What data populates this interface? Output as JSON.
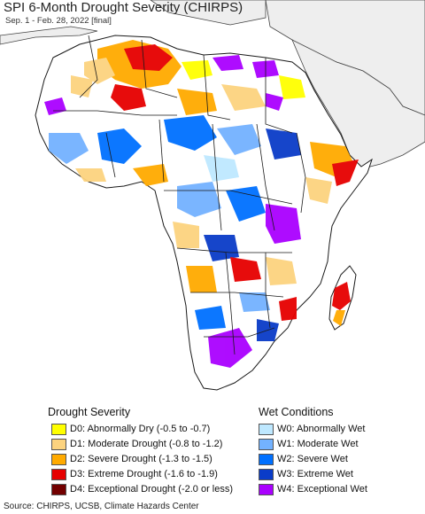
{
  "title": "SPI 6-Month Drought Severity (CHIRPS)",
  "subtitle": "Sep. 1 - Feb. 28, 2022 [final]",
  "colors": {
    "ocean": "#ffffff",
    "land_outside": "#eeeeee",
    "land_normal": "#ffffff",
    "border": "#1a1a1a"
  },
  "legend": {
    "drought_title": "Drought Severity",
    "drought": [
      {
        "label": "D0: Abnormally Dry (-0.5 to -0.7)",
        "color": "#ffff00"
      },
      {
        "label": "D1: Moderate Drought (-0.8 to -1.2)",
        "color": "#fcd37f"
      },
      {
        "label": "D2: Severe Drought (-1.3 to -1.5)",
        "color": "#ffaa00"
      },
      {
        "label": "D3: Extreme Drought (-1.6 to -1.9)",
        "color": "#e60000"
      },
      {
        "label": "D4: Exceptional Drought (-2.0 or less)",
        "color": "#730000"
      }
    ],
    "wet_title": "Wet Conditions",
    "wet": [
      {
        "label": "W0: Abnormally Wet",
        "color": "#bee8ff"
      },
      {
        "label": "W1: Moderate Wet",
        "color": "#73b2ff"
      },
      {
        "label": "W2: Severe Wet",
        "color": "#0070ff"
      },
      {
        "label": "W3: Extreme Wet",
        "color": "#0a3cc8"
      },
      {
        "label": "W4: Exceptional Wet",
        "color": "#aa00ff"
      }
    ]
  },
  "source": "Source: CHIRPS, UCSB, Climate Hazards Center"
}
